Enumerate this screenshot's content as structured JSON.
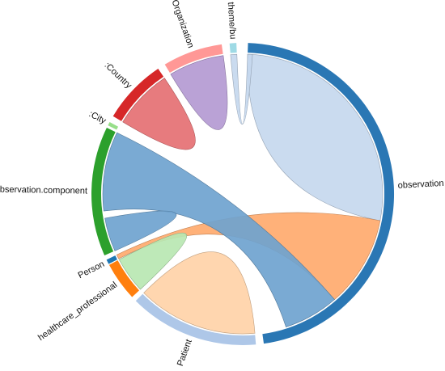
{
  "chart_data": {
    "type": "chord",
    "groups": [
      {
        "id": "observation",
        "label": "observation",
        "color": "#2a77b4",
        "start_deg": 2,
        "end_deg": 172
      },
      {
        "id": "patient",
        "label": "Patient",
        "color": "#aec7e8",
        "start_deg": 175,
        "end_deg": 225
      },
      {
        "id": "healthcare_professional",
        "label": "healthcare_professional",
        "color": "#ff7f0e",
        "start_deg": 227,
        "end_deg": 242
      },
      {
        "id": "person",
        "label": "Person",
        "color": "#1f77b4",
        "start_deg": 242.4,
        "end_deg": 244.2
      },
      {
        "id": "observation_component",
        "label": ":Observation.component",
        "color": "#2ca02c",
        "start_deg": 246,
        "end_deg": 296
      },
      {
        "id": "city",
        "label": ":City",
        "color": "#98df8a",
        "start_deg": 297,
        "end_deg": 298.4
      },
      {
        "id": "country",
        "label": ":Country",
        "color": "#d62728",
        "start_deg": 301,
        "end_deg": 326
      },
      {
        "id": "organization",
        "label": "Organization",
        "color": "#ff9896",
        "start_deg": 329,
        "end_deg": 352
      },
      {
        "id": "theme_bu",
        "label": "theme/bu",
        "color": "#9edae5",
        "start_deg": 355,
        "end_deg": 357.6
      }
    ],
    "chords": [
      {
        "source": "observation",
        "source_span": [
          2,
          101
        ],
        "target": "observation",
        "target_span": [
          2,
          101
        ],
        "color": "#c5d8ee"
      },
      {
        "source": "observation",
        "source_span": [
          101,
          139
        ],
        "target": "person",
        "target_span": [
          242.4,
          244.2
        ],
        "color": "#ffaa6e"
      },
      {
        "source": "observation",
        "source_span": [
          139,
          162
        ],
        "target": "observation_component",
        "target_span": [
          263,
          296
        ],
        "color": "#6fa3cf"
      },
      {
        "source": "patient",
        "source_span": [
          175,
          225
        ],
        "target": "patient",
        "target_span": [
          175,
          225
        ],
        "color": "#ffd2a8"
      },
      {
        "source": "healthcare_professional",
        "source_span": [
          227,
          242
        ],
        "target": "healthcare_professional",
        "target_span": [
          227,
          242
        ],
        "color": "#b9e7b2"
      },
      {
        "source": "observation_component",
        "source_span": [
          246,
          260
        ],
        "target": "observation_component",
        "target_span": [
          246,
          260
        ],
        "color": "#6fa3cf"
      },
      {
        "source": "country",
        "source_span": [
          301,
          326
        ],
        "target": "country",
        "target_span": [
          301,
          326
        ],
        "color": "#e57073"
      },
      {
        "source": "organization",
        "source_span": [
          329,
          352
        ],
        "target": "organization",
        "target_span": [
          329,
          352
        ],
        "color": "#b49ad2"
      },
      {
        "source": "theme_bu",
        "source_span": [
          355,
          357.6
        ],
        "target": "observation",
        "target_span": [
          2,
          4
        ],
        "color": "#c5d8ee"
      }
    ],
    "title": ""
  },
  "colors": {
    "background": "#ffffff",
    "label": "#111111"
  }
}
